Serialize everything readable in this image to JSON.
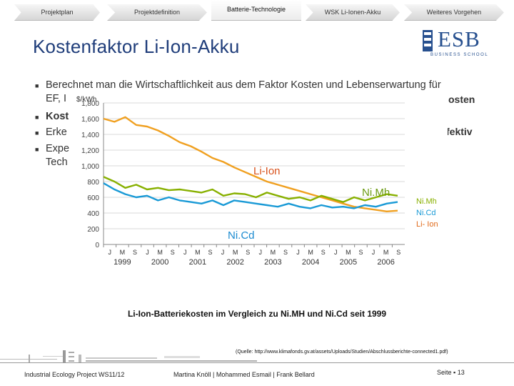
{
  "nav": {
    "tabs": [
      {
        "label": "Projektplan",
        "active": false
      },
      {
        "label": "Projektdefinition",
        "active": false
      },
      {
        "label": "Batterie-Technologie",
        "active": true
      },
      {
        "label": "WSK Li-Ionen-Akku",
        "active": false
      },
      {
        "label": "Weiteres Vorgehen",
        "active": false
      }
    ]
  },
  "title": "Kostenfaktor Li-Ion-Akku",
  "logo": {
    "name": "ESB",
    "sub": "BUSINESS SCHOOL",
    "icon": "esb-logo-icon"
  },
  "bullets": [
    {
      "text": "Berechnet man die Wirtschaftlichkeit aus dem Faktor Kosten und Lebenserwartung für",
      "right": ""
    },
    {
      "text": "EF, I",
      "right": "osten",
      "bold_right": true
    },
    {
      "text": "Kost",
      "right": "",
      "bold": true
    },
    {
      "text": "Erke",
      "right": "fektiv",
      "bold_right": true
    },
    {
      "text": "Expe",
      "right": ""
    },
    {
      "text": "Tech",
      "right": ""
    }
  ],
  "chart_data": {
    "type": "line",
    "title": "",
    "ylabel": "$/kWh",
    "ylim": [
      0,
      1800
    ],
    "yticks": [
      "1,800",
      "1,600",
      "1,400",
      "1,200",
      "1,000",
      "800",
      "600",
      "400",
      "200",
      "0"
    ],
    "month_labels": [
      "J",
      "M",
      "S",
      "J",
      "M",
      "S",
      "J",
      "M",
      "S",
      "J",
      "M",
      "S",
      "J",
      "M",
      "S",
      "J",
      "M",
      "S",
      "J",
      "M",
      "S",
      "J",
      "M",
      "S"
    ],
    "year_labels": [
      "1999",
      "2000",
      "2001",
      "2002",
      "2003",
      "2004",
      "2005",
      "2006"
    ],
    "series": [
      {
        "name": "Li-Ion",
        "color": "#f0a020",
        "values": [
          1600,
          1560,
          1620,
          1520,
          1500,
          1450,
          1380,
          1300,
          1250,
          1180,
          1100,
          1050,
          980,
          920,
          860,
          800,
          760,
          720,
          680,
          640,
          600,
          560,
          520,
          480,
          460,
          440,
          420,
          430
        ]
      },
      {
        "name": "NiMh",
        "color": "#88b000",
        "values": [
          860,
          800,
          720,
          760,
          700,
          720,
          690,
          700,
          680,
          660,
          700,
          620,
          650,
          640,
          600,
          660,
          620,
          580,
          600,
          560,
          620,
          580,
          540,
          600,
          560,
          600,
          640,
          620
        ]
      },
      {
        "name": "NiCd",
        "color": "#1a9ad6",
        "values": [
          780,
          700,
          640,
          600,
          620,
          560,
          600,
          560,
          540,
          520,
          560,
          500,
          560,
          540,
          520,
          500,
          480,
          520,
          480,
          460,
          500,
          470,
          480,
          460,
          500,
          480,
          520,
          540
        ]
      }
    ],
    "annotations": [
      {
        "label": "Li-Ion",
        "color": "#d9531e"
      },
      {
        "label": "Ni.Mh",
        "color": "#6a9a10"
      },
      {
        "label": "Ni.Cd",
        "color": "#1a8ad0"
      }
    ],
    "legend": [
      {
        "label": "Ni.Mh",
        "color": "#88b000"
      },
      {
        "label": "Ni.Cd",
        "color": "#1a9ad6"
      },
      {
        "label": "Li- Ion",
        "color": "#e06a1a"
      }
    ],
    "legend_position": "right"
  },
  "caption": "Li-Ion-Batteriekosten im Vergleich zu Ni.MH und Ni.Cd seit 1999",
  "source": "(Quelle: http://www.klimafonds.gv.at/assets/Uploads/Studien/Abschlussberichte-connected1.pdf)",
  "footer": {
    "left": "Industrial Ecology Project WS11/12",
    "authors": "Martina Knöll   |   Mohammed Esmail   |   Frank Bellard",
    "page": "Seite ▪ 13"
  }
}
